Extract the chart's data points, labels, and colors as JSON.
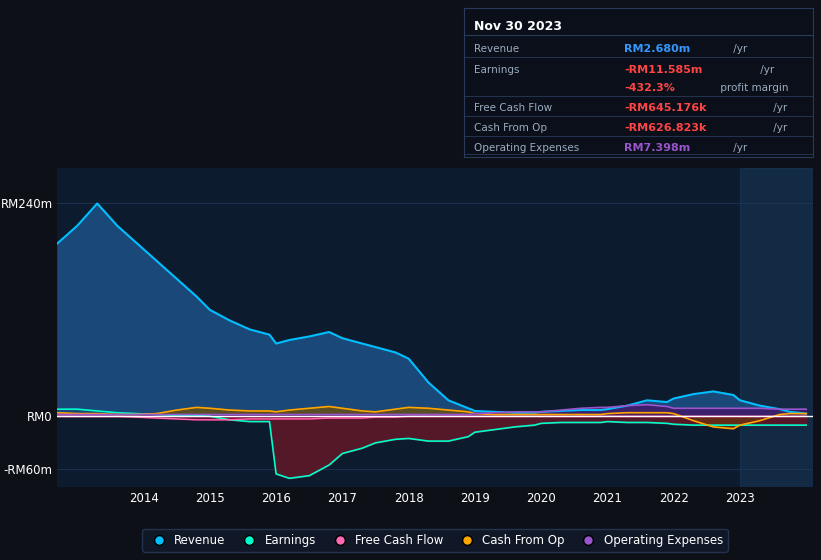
{
  "bg_color": "#0d1117",
  "plot_bg_color": "#0d1b2e",
  "grid_color": "#1e3558",
  "zero_line_color": "#ffffff",
  "ylim": [
    -80,
    280
  ],
  "xlim_start": 2012.7,
  "xlim_end": 2024.1,
  "ylabel_ticks": [
    {
      "val": 240,
      "label": "RM240m"
    },
    {
      "val": 0,
      "label": "RM0"
    },
    {
      "val": -60,
      "label": "-RM60m"
    }
  ],
  "years": [
    2012.7,
    2013.0,
    2013.3,
    2013.6,
    2013.9,
    2014.2,
    2014.5,
    2014.8,
    2015.0,
    2015.3,
    2015.6,
    2015.9,
    2016.0,
    2016.2,
    2016.5,
    2016.8,
    2017.0,
    2017.3,
    2017.5,
    2017.8,
    2018.0,
    2018.3,
    2018.6,
    2018.9,
    2019.0,
    2019.3,
    2019.6,
    2019.9,
    2020.0,
    2020.3,
    2020.6,
    2020.9,
    2021.0,
    2021.3,
    2021.6,
    2021.9,
    2022.0,
    2022.3,
    2022.6,
    2022.9,
    2023.0,
    2023.3,
    2023.6,
    2023.75,
    2024.0
  ],
  "revenue": [
    195,
    215,
    240,
    215,
    195,
    175,
    155,
    135,
    120,
    108,
    98,
    92,
    82,
    86,
    90,
    95,
    88,
    82,
    78,
    72,
    65,
    38,
    18,
    9,
    6,
    5,
    4,
    4,
    5,
    6,
    7,
    7,
    8,
    12,
    18,
    16,
    20,
    25,
    28,
    24,
    18,
    12,
    8,
    5,
    3
  ],
  "earnings": [
    8,
    8,
    6,
    4,
    3,
    2,
    1,
    1,
    0,
    -4,
    -6,
    -6,
    -65,
    -70,
    -67,
    -55,
    -42,
    -36,
    -30,
    -26,
    -25,
    -28,
    -28,
    -23,
    -18,
    -15,
    -12,
    -10,
    -8,
    -7,
    -7,
    -7,
    -6,
    -7,
    -7,
    -8,
    -9,
    -10,
    -10,
    -10,
    -10,
    -10,
    -10,
    -10,
    -10
  ],
  "free_cash_flow": [
    0,
    0,
    0,
    0,
    -1,
    -2,
    -3,
    -4,
    -4,
    -4,
    -3,
    -3,
    -3,
    -3,
    -3,
    -2,
    -2,
    -2,
    -1,
    -1,
    0,
    0,
    0,
    0,
    0,
    0,
    0,
    0,
    0,
    0,
    0,
    0,
    0,
    0,
    0,
    0,
    0,
    0,
    0,
    0,
    0,
    0,
    0,
    0,
    0
  ],
  "cash_from_op": [
    4,
    3,
    3,
    2,
    2,
    3,
    7,
    10,
    9,
    7,
    6,
    6,
    5,
    7,
    9,
    11,
    9,
    6,
    5,
    8,
    10,
    9,
    7,
    5,
    3,
    2,
    2,
    2,
    2,
    2,
    2,
    2,
    3,
    4,
    4,
    4,
    3,
    -5,
    -12,
    -14,
    -10,
    -5,
    2,
    3,
    3
  ],
  "op_expenses": [
    2,
    2,
    2,
    2,
    2,
    2,
    2,
    2,
    2,
    2,
    2,
    2,
    2,
    2,
    2,
    2,
    2,
    2,
    2,
    2,
    2,
    2,
    2,
    2,
    3,
    4,
    5,
    5,
    5,
    7,
    9,
    10,
    10,
    12,
    13,
    11,
    9,
    9,
    9,
    9,
    9,
    9,
    8,
    8,
    8
  ],
  "revenue_color": "#00bfff",
  "earnings_color": "#00ffcc",
  "fcf_color": "#ff69b4",
  "cashop_color": "#ffa500",
  "opex_color": "#9955cc",
  "revenue_fill": "#1a4878",
  "earnings_neg_fill": "#5a1828",
  "cashop_pos_fill": "#6a5010",
  "cashop_neg_fill": "#6a3010",
  "opex_fill": "#44186a",
  "shade_color": "#1a3a5c",
  "shade_alpha": 0.5,
  "shade_start": 2023.0,
  "shade_end": 2024.1,
  "legend_bg": "#12192a",
  "legend_border": "#2a3a5a",
  "info_box": {
    "title": "Nov 30 2023",
    "title_color": "#ffffff",
    "border_color": "#2a3a5a",
    "bg_color": "#0a0f1a",
    "rows": [
      {
        "label": "Revenue",
        "value": "RM2.680m",
        "unit": " /yr",
        "value_color": "#3399ff"
      },
      {
        "label": "Earnings",
        "value": "-RM11.585m",
        "unit": " /yr",
        "value_color": "#ff4444"
      },
      {
        "label": "",
        "value": "-432.3%",
        "unit": " profit margin",
        "value_color": "#ff4444"
      },
      {
        "label": "Free Cash Flow",
        "value": "-RM645.176k",
        "unit": " /yr",
        "value_color": "#ff4444"
      },
      {
        "label": "Cash From Op",
        "value": "-RM626.823k",
        "unit": " /yr",
        "value_color": "#ff4444"
      },
      {
        "label": "Operating Expenses",
        "value": "RM7.398m",
        "unit": " /yr",
        "value_color": "#9955cc"
      }
    ]
  },
  "xtick_years": [
    2014,
    2015,
    2016,
    2017,
    2018,
    2019,
    2020,
    2021,
    2022,
    2023
  ]
}
